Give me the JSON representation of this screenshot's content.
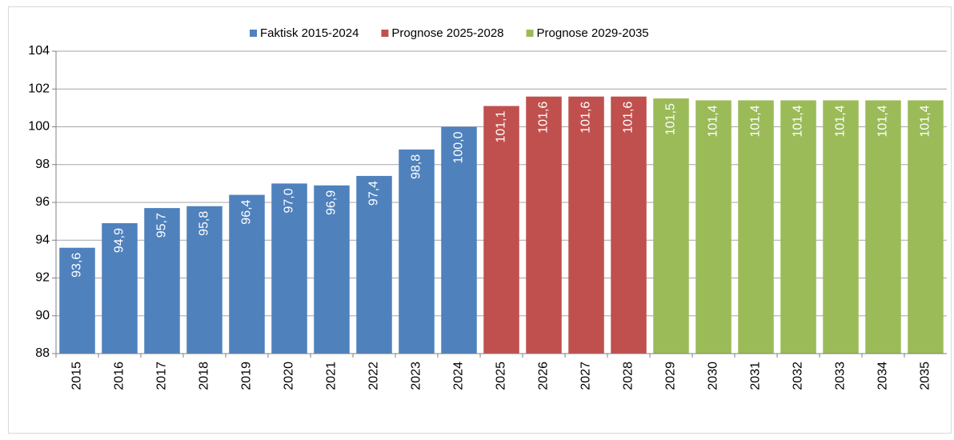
{
  "chart_data": {
    "type": "bar",
    "categories": [
      "2015",
      "2016",
      "2017",
      "2018",
      "2019",
      "2020",
      "2021",
      "2022",
      "2023",
      "2024",
      "2025",
      "2026",
      "2027",
      "2028",
      "2029",
      "2030",
      "2031",
      "2032",
      "2033",
      "2034",
      "2035"
    ],
    "series": [
      {
        "name": "Faktisk 2015-2024",
        "color": "#4f81bd",
        "values": [
          93.6,
          94.9,
          95.7,
          95.8,
          96.4,
          97.0,
          96.9,
          97.4,
          98.8,
          100.0,
          null,
          null,
          null,
          null,
          null,
          null,
          null,
          null,
          null,
          null,
          null
        ],
        "value_labels": [
          "93,6",
          "94,9",
          "95,7",
          "95,8",
          "96,4",
          "97,0",
          "96,9",
          "97,4",
          "98,8",
          "100,0",
          null,
          null,
          null,
          null,
          null,
          null,
          null,
          null,
          null,
          null,
          null
        ]
      },
      {
        "name": "Prognose 2025-2028",
        "color": "#c0504d",
        "values": [
          null,
          null,
          null,
          null,
          null,
          null,
          null,
          null,
          null,
          null,
          101.1,
          101.6,
          101.6,
          101.6,
          null,
          null,
          null,
          null,
          null,
          null,
          null
        ],
        "value_labels": [
          null,
          null,
          null,
          null,
          null,
          null,
          null,
          null,
          null,
          null,
          "101,1",
          "101,6",
          "101,6",
          "101,6",
          null,
          null,
          null,
          null,
          null,
          null,
          null
        ]
      },
      {
        "name": "Prognose 2029-2035",
        "color": "#9bbb59",
        "values": [
          null,
          null,
          null,
          null,
          null,
          null,
          null,
          null,
          null,
          null,
          null,
          null,
          null,
          null,
          101.5,
          101.4,
          101.4,
          101.4,
          101.4,
          101.4,
          101.4
        ],
        "value_labels": [
          null,
          null,
          null,
          null,
          null,
          null,
          null,
          null,
          null,
          null,
          null,
          null,
          null,
          null,
          "101,5",
          "101,4",
          "101,4",
          "101,4",
          "101,4",
          "101,4",
          "101,4"
        ]
      }
    ],
    "ylim": [
      88,
      104
    ],
    "yticks": [
      88,
      90,
      92,
      94,
      96,
      98,
      100,
      102,
      104
    ],
    "grid": true
  }
}
